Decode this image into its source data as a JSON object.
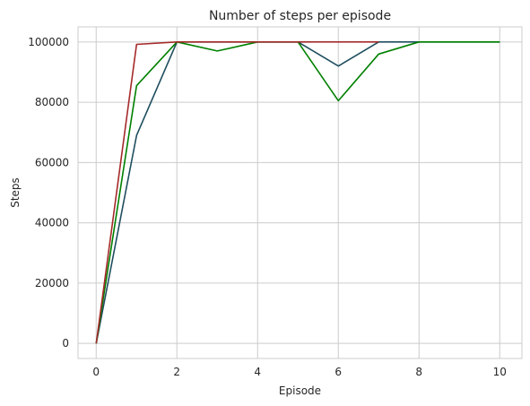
{
  "chart_data": {
    "type": "line",
    "title": "Number of steps per episode",
    "xlabel": "Episode",
    "ylabel": "Steps",
    "xlim": [
      -0.45,
      10.55
    ],
    "ylim": [
      -5000,
      105000
    ],
    "xticks": [
      0,
      2,
      4,
      6,
      8,
      10
    ],
    "yticks": [
      0,
      20000,
      40000,
      60000,
      80000,
      100000
    ],
    "grid": true,
    "series": [
      {
        "color": "#1f4e5f",
        "x": [
          0,
          1,
          2,
          3,
          4,
          5,
          6,
          7,
          8,
          9,
          10
        ],
        "y": [
          0,
          69000,
          100000,
          100000,
          100000,
          100000,
          92000,
          100000,
          100000,
          100000,
          100000
        ]
      },
      {
        "color": "#008000",
        "x": [
          0,
          1,
          2,
          3,
          4,
          5,
          6,
          7,
          8,
          9,
          10
        ],
        "y": [
          0,
          85500,
          100000,
          97000,
          100000,
          100000,
          80500,
          96000,
          100000,
          100000,
          100000
        ]
      },
      {
        "color": "#a52a2a",
        "x": [
          0,
          1,
          2,
          3,
          4,
          5,
          6,
          7
        ],
        "y": [
          0,
          99200,
          100000,
          100000,
          100000,
          100000,
          100000,
          100000
        ]
      }
    ]
  }
}
